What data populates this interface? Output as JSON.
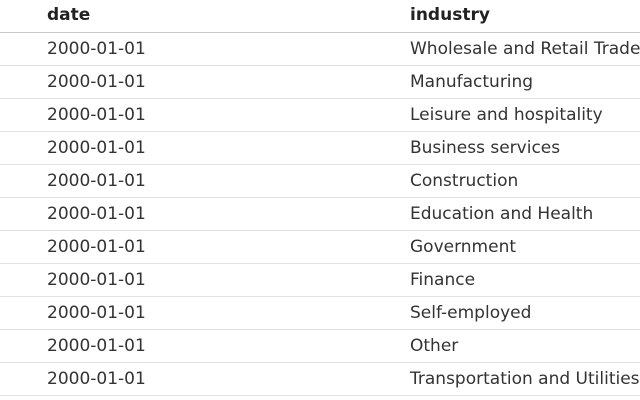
{
  "table": {
    "columns": [
      "date",
      "industry"
    ],
    "rows": [
      [
        "2000-01-01",
        "Wholesale and Retail Trade"
      ],
      [
        "2000-01-01",
        "Manufacturing"
      ],
      [
        "2000-01-01",
        "Leisure and hospitality"
      ],
      [
        "2000-01-01",
        "Business services"
      ],
      [
        "2000-01-01",
        "Construction"
      ],
      [
        "2000-01-01",
        "Education and Health"
      ],
      [
        "2000-01-01",
        "Government"
      ],
      [
        "2000-01-01",
        "Finance"
      ],
      [
        "2000-01-01",
        "Self-employed"
      ],
      [
        "2000-01-01",
        "Other"
      ],
      [
        "2000-01-01",
        "Transportation and Utilities"
      ]
    ]
  }
}
